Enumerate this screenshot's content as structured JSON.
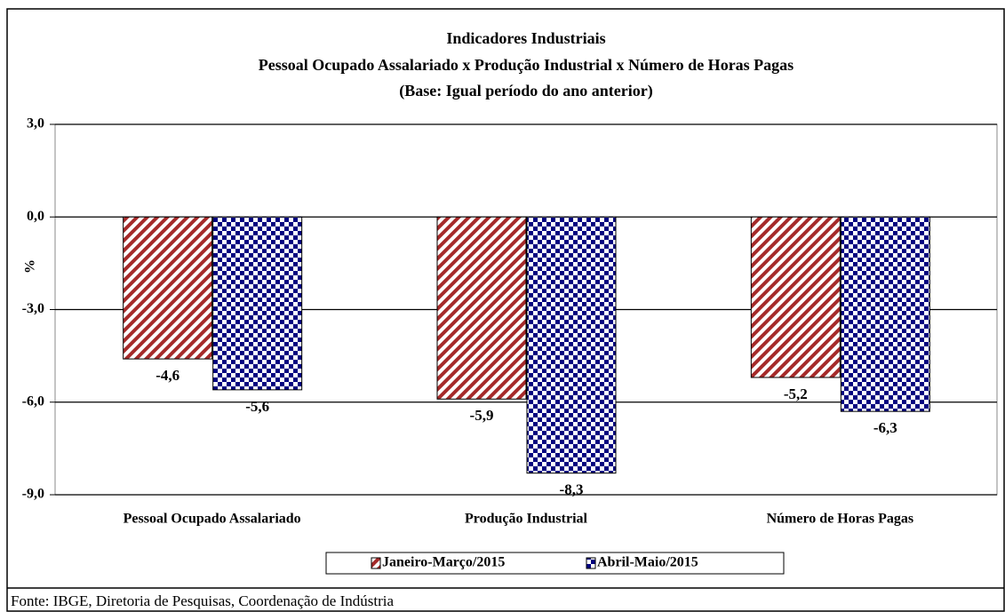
{
  "chart_data": {
    "type": "bar",
    "title": "Indicadores Industriais",
    "subtitle": "Pessoal Ocupado  Assalariado x Produção Industrial x Número de Horas Pagas",
    "subtitle2": "(Base: Igual período do ano anterior)",
    "ylabel": "%",
    "categories": [
      "Pessoal Ocupado Assalariado",
      "Produção Industrial",
      "Número de Horas Pagas"
    ],
    "series": [
      {
        "name": "Janeiro-Março/2015",
        "color": "#a52a2a",
        "values": [
          -4.6,
          -5.9,
          -5.2
        ],
        "value_labels": [
          "-4,6",
          "-5,9",
          "-5,2"
        ]
      },
      {
        "name": "Abril-Maio/2015",
        "color": "#000080",
        "values": [
          -5.6,
          -8.3,
          -6.3
        ],
        "value_labels": [
          "-5,6",
          "-8,3",
          "-6,3"
        ]
      }
    ],
    "ylim": [
      -9,
      3
    ],
    "yticks": [
      {
        "value": 3,
        "label": "3,0"
      },
      {
        "value": 0,
        "label": "0,0"
      },
      {
        "value": -3,
        "label": "-3,0"
      },
      {
        "value": -6,
        "label": "-6,0"
      },
      {
        "value": -9,
        "label": "-9,0"
      }
    ],
    "grid": true,
    "legend": "bottom",
    "source": "Fonte: IBGE, Diretoria de Pesquisas, Coordenação de Indústria"
  }
}
